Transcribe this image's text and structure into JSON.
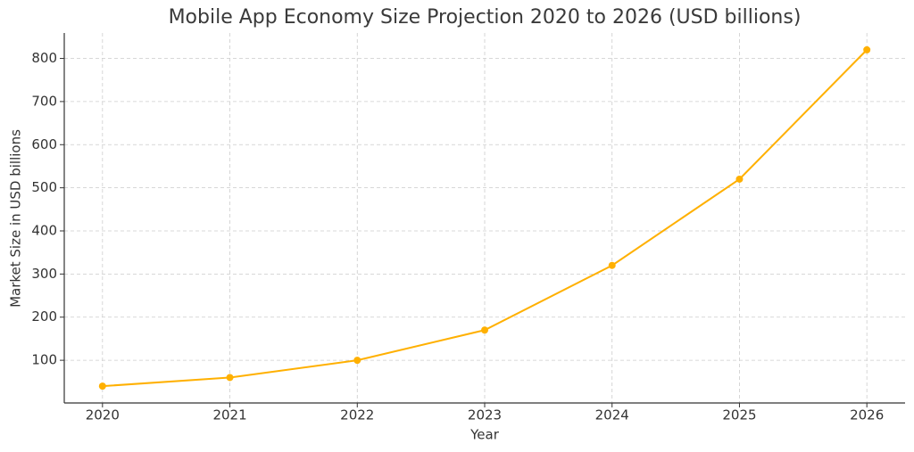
{
  "chart_data": {
    "type": "line",
    "title": "Mobile App Economy Size Projection 2020 to 2026 (USD billions)",
    "x_label": "Year",
    "y_label": "Market Size in USD billions",
    "x": [
      2020,
      2021,
      2022,
      2023,
      2024,
      2025,
      2026
    ],
    "series": [
      {
        "color": "#ffb000",
        "values": [
          40,
          60,
          100,
          170,
          320,
          520,
          820
        ]
      }
    ],
    "xlim": [
      2019.7,
      2026.3
    ],
    "xticks": [
      2020,
      2021,
      2022,
      2023,
      2024,
      2025,
      2026
    ],
    "ylim": [
      1,
      859
    ],
    "yticks": [
      100,
      200,
      300,
      400,
      500,
      600,
      700,
      800
    ],
    "grid": true
  }
}
